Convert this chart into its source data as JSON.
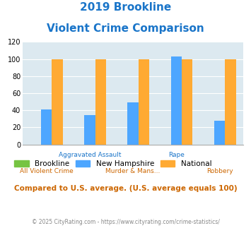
{
  "title_line1": "2019 Brookline",
  "title_line2": "Violent Crime Comparison",
  "categories": [
    "All Violent Crime",
    "Aggravated Assault",
    "Murder & Mans...",
    "Rape",
    "Robbery"
  ],
  "series": {
    "Brookline": [
      0,
      0,
      0,
      0,
      0
    ],
    "New Hampshire": [
      41,
      34,
      49,
      103,
      28
    ],
    "National": [
      100,
      100,
      100,
      100,
      100
    ]
  },
  "colors": {
    "Brookline": "#76c442",
    "New Hampshire": "#4da6ff",
    "National": "#ffaa33"
  },
  "ylim": [
    0,
    120
  ],
  "yticks": [
    0,
    20,
    40,
    60,
    80,
    100,
    120
  ],
  "plot_bg": "#dce9f0",
  "title_color": "#1a75c9",
  "footer_text": "Compared to U.S. average. (U.S. average equals 100)",
  "footer_color": "#cc6600",
  "copyright_text": "© 2025 CityRating.com - https://www.cityrating.com/crime-statistics/",
  "copyright_color": "#888888",
  "bar_width": 0.25,
  "group_positions": [
    0,
    1,
    2,
    3,
    4
  ],
  "label_row1": [
    "",
    "Aggravated Assault",
    "",
    "Rape",
    ""
  ],
  "label_row1_color": "#1a75c9",
  "label_row2": [
    "All Violent Crime",
    "",
    "Murder & Mans...",
    "",
    "Robbery"
  ],
  "label_row2_color": "#cc6600"
}
